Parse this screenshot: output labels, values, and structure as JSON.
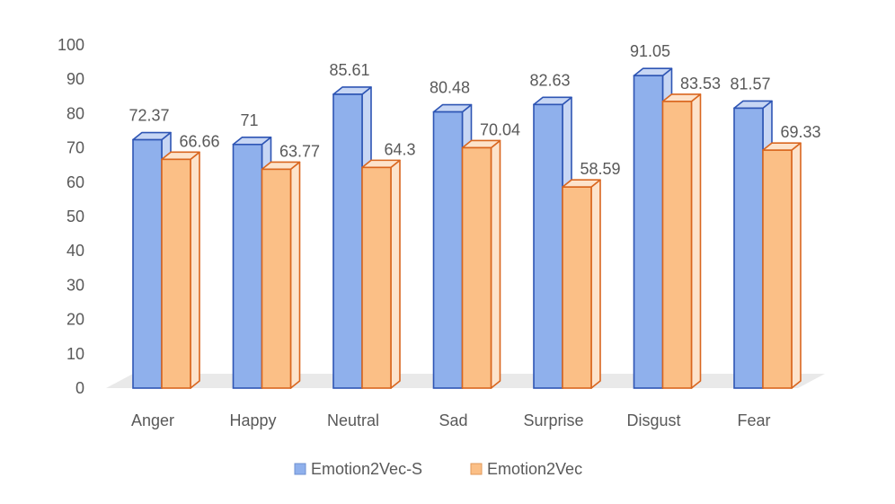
{
  "chart_data": {
    "type": "bar",
    "title": "",
    "xlabel": "",
    "ylabel": "",
    "ylim": [
      0,
      100
    ],
    "yticks": [
      0,
      10,
      20,
      30,
      40,
      50,
      60,
      70,
      80,
      90,
      100
    ],
    "categories": [
      "Anger",
      "Happy",
      "Neutral",
      "Sad",
      "Surprise",
      "Disgust",
      "Fear"
    ],
    "series": [
      {
        "name": "Emotion2Vec-S",
        "values": [
          72.37,
          71,
          85.61,
          80.48,
          82.63,
          91.05,
          81.57
        ],
        "labels": [
          "72.37",
          "71",
          "85.61",
          "80.48",
          "82.63",
          "91.05",
          "81.57"
        ],
        "fill": "#8fb0ec",
        "side": "#c7d6f4",
        "stroke": "#2e55b4"
      },
      {
        "name": "Emotion2Vec",
        "values": [
          66.66,
          63.77,
          64.3,
          70.04,
          58.59,
          83.53,
          69.33
        ],
        "labels": [
          "66.66",
          "63.77",
          "64.3",
          "70.04",
          "58.59",
          "83.53",
          "69.33"
        ],
        "fill": "#fbbf86",
        "side": "#fde3cb",
        "stroke": "#d9661f"
      }
    ],
    "legend_position": "bottom",
    "grid": false
  }
}
